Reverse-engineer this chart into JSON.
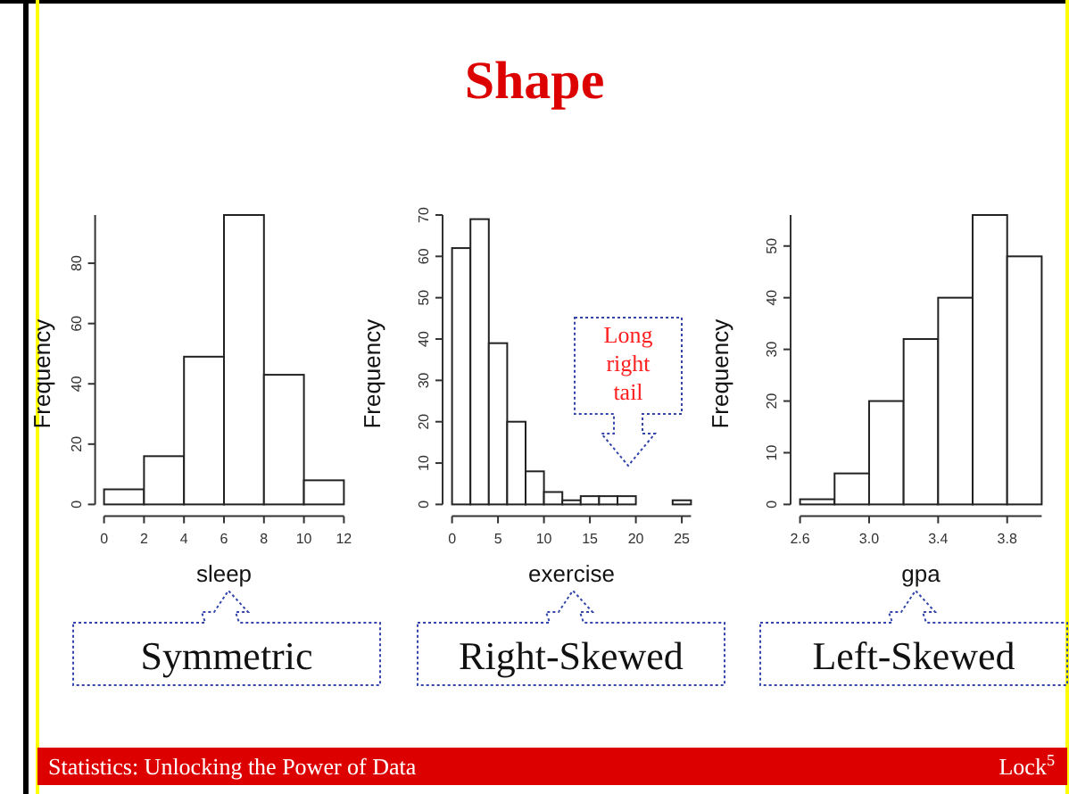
{
  "chart_data": [
    {
      "type": "histogram",
      "xlabel": "sleep",
      "ylabel": "Frequency",
      "bins": [
        0,
        2,
        4,
        6,
        8,
        10,
        12
      ],
      "values": [
        5,
        16,
        49,
        96,
        43,
        8
      ],
      "color": "#ffffff",
      "xlim": [
        0,
        12
      ],
      "xticks": [
        0,
        2,
        4,
        6,
        8,
        10,
        12
      ],
      "ylim": [
        0,
        96
      ],
      "yticks": [
        0,
        20,
        40,
        60,
        80
      ],
      "annotations": [
        "Symmetric",
        "Statistics: Unlocking the Power of Data",
        "Lock$^{5}$"
      ]
    },
    {
      "type": "histogram",
      "title": "Shape",
      "xlabel": "exercise",
      "ylabel": "Frequency",
      "bins": [
        0,
        2,
        4,
        6,
        8,
        10,
        12,
        14,
        16,
        18,
        20,
        22,
        24,
        26
      ],
      "values": [
        62,
        69,
        39,
        20,
        8,
        3,
        1,
        2,
        2,
        2,
        0,
        0,
        1
      ],
      "color": "#ffffff",
      "xlim": [
        0,
        26
      ],
      "xticks": [
        0,
        5,
        10,
        15,
        20,
        25
      ],
      "ylim": [
        0,
        70
      ],
      "yticks": [
        0,
        10,
        20,
        30,
        40,
        50,
        60,
        70
      ],
      "annotations": [
        "Right-Skewed",
        "Long right tail"
      ]
    },
    {
      "type": "histogram",
      "xlabel": "gpa",
      "ylabel": "Frequency",
      "bins": [
        2.6,
        2.8,
        3.0,
        3.2,
        3.4,
        3.6,
        3.8,
        4.0
      ],
      "values": [
        1,
        6,
        20,
        32,
        40,
        56,
        48
      ],
      "color": "#ffffff",
      "xlim": [
        2.6,
        4.0
      ],
      "xticks": [
        2.6,
        {
          "value": 3,
          "label": "3.0"
        },
        3.4,
        3.8
      ],
      "ylim": [
        0,
        56
      ],
      "yticks": [
        0,
        10,
        20,
        30,
        40,
        50
      ],
      "annotations": [
        "Left-Skewed"
      ]
    }
  ]
}
